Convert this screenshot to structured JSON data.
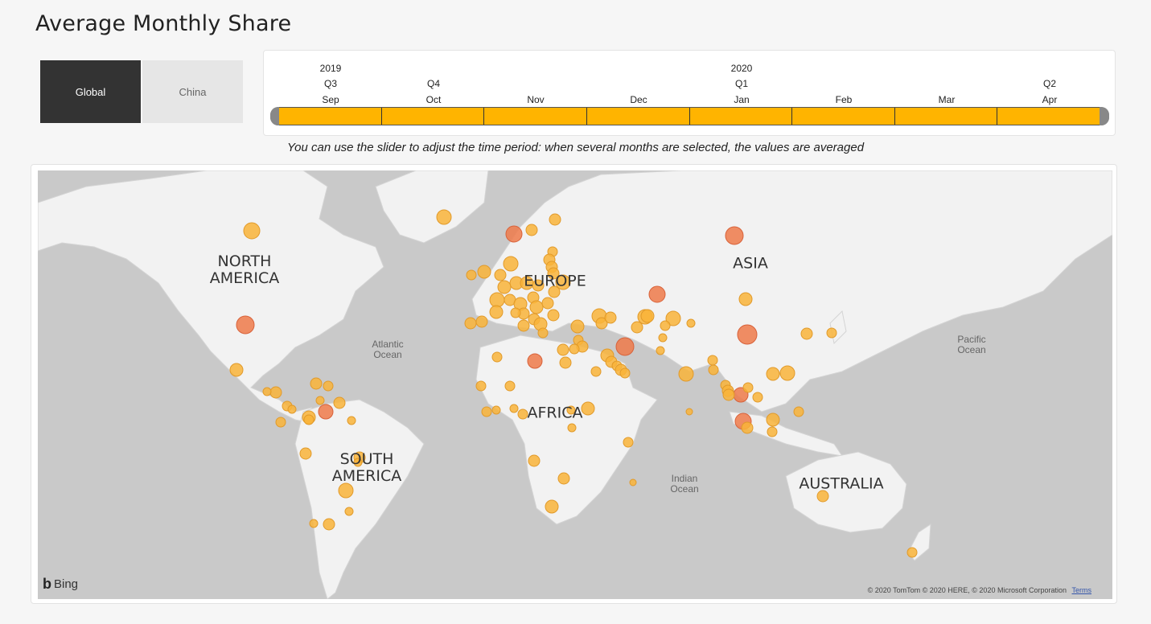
{
  "title": "Average Monthly Share",
  "region_toggle": {
    "options": [
      {
        "label": "Global",
        "selected": true
      },
      {
        "label": "China",
        "selected": false
      }
    ],
    "selected_color": "#333333",
    "unselected_color": "#e6e6e6"
  },
  "timeline": {
    "years": [
      {
        "label": "2019",
        "month": "Sep"
      },
      {
        "label": "2020",
        "month": "Jan"
      }
    ],
    "quarters": [
      {
        "label": "Q3",
        "month": "Sep"
      },
      {
        "label": "Q4",
        "month": "Oct"
      },
      {
        "label": "Q1",
        "month": "Jan"
      },
      {
        "label": "Q2",
        "month": "Apr"
      }
    ],
    "months": [
      "Sep",
      "Oct",
      "Nov",
      "Dec",
      "Jan",
      "Feb",
      "Mar",
      "Apr"
    ],
    "selected_range": [
      "Sep",
      "Apr"
    ],
    "fill_color": "#ffb400"
  },
  "caption": "You can use the slider to adjust the time period: when several months are selected, the values are averaged",
  "map": {
    "continent_labels": [
      "NORTH\nAMERICA",
      "EUROPE",
      "ASIA",
      "SOUTH\nAMERICA",
      "AFRICA",
      "AUSTRALIA"
    ],
    "ocean_labels": [
      "Atlantic\nOcean",
      "Pacific\nOcean",
      "Indian\nOcean"
    ],
    "logo": "Bing",
    "attribution": "© 2020 TomTom © 2020 HERE, © 2020 Microsoft Corporation",
    "terms_link": "Terms",
    "colors": {
      "water": "#c9c9c9",
      "land": "#f2f2f2",
      "bubble_low": "#f9b43a",
      "bubble_high": "#ef7a4a"
    }
  }
}
